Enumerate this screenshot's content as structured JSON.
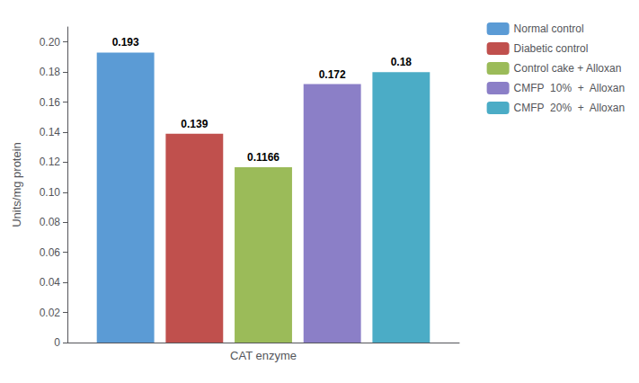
{
  "chart_data": {
    "type": "bar",
    "categories": [
      "CAT enzyme"
    ],
    "series": [
      {
        "name": "Normal control",
        "color": "#5B9BD5",
        "values": [
          0.193
        ]
      },
      {
        "name": "Diabetic control",
        "color": "#C0504D",
        "values": [
          0.139
        ]
      },
      {
        "name": "Control cake + Alloxan",
        "color": "#9BBB59",
        "values": [
          0.1166
        ]
      },
      {
        "name": "CMFP  10%  +  Alloxan",
        "color": "#8B7FC7",
        "values": [
          0.172
        ]
      },
      {
        "name": "CMFP  20%  +  Alloxan",
        "color": "#4BACC6",
        "values": [
          0.18
        ]
      }
    ],
    "ylabel": "Units/mg protein",
    "ylim": [
      0,
      0.21
    ],
    "yticks": [
      0,
      0.02,
      0.04,
      0.06,
      0.08,
      {
        "value": 0.1,
        "label": "0.10"
      },
      0.12,
      0.14,
      0.16,
      0.18,
      {
        "value": 0.2,
        "label": "0.20"
      }
    ],
    "grid": false,
    "legend": "upper right",
    "data_labels": true
  }
}
